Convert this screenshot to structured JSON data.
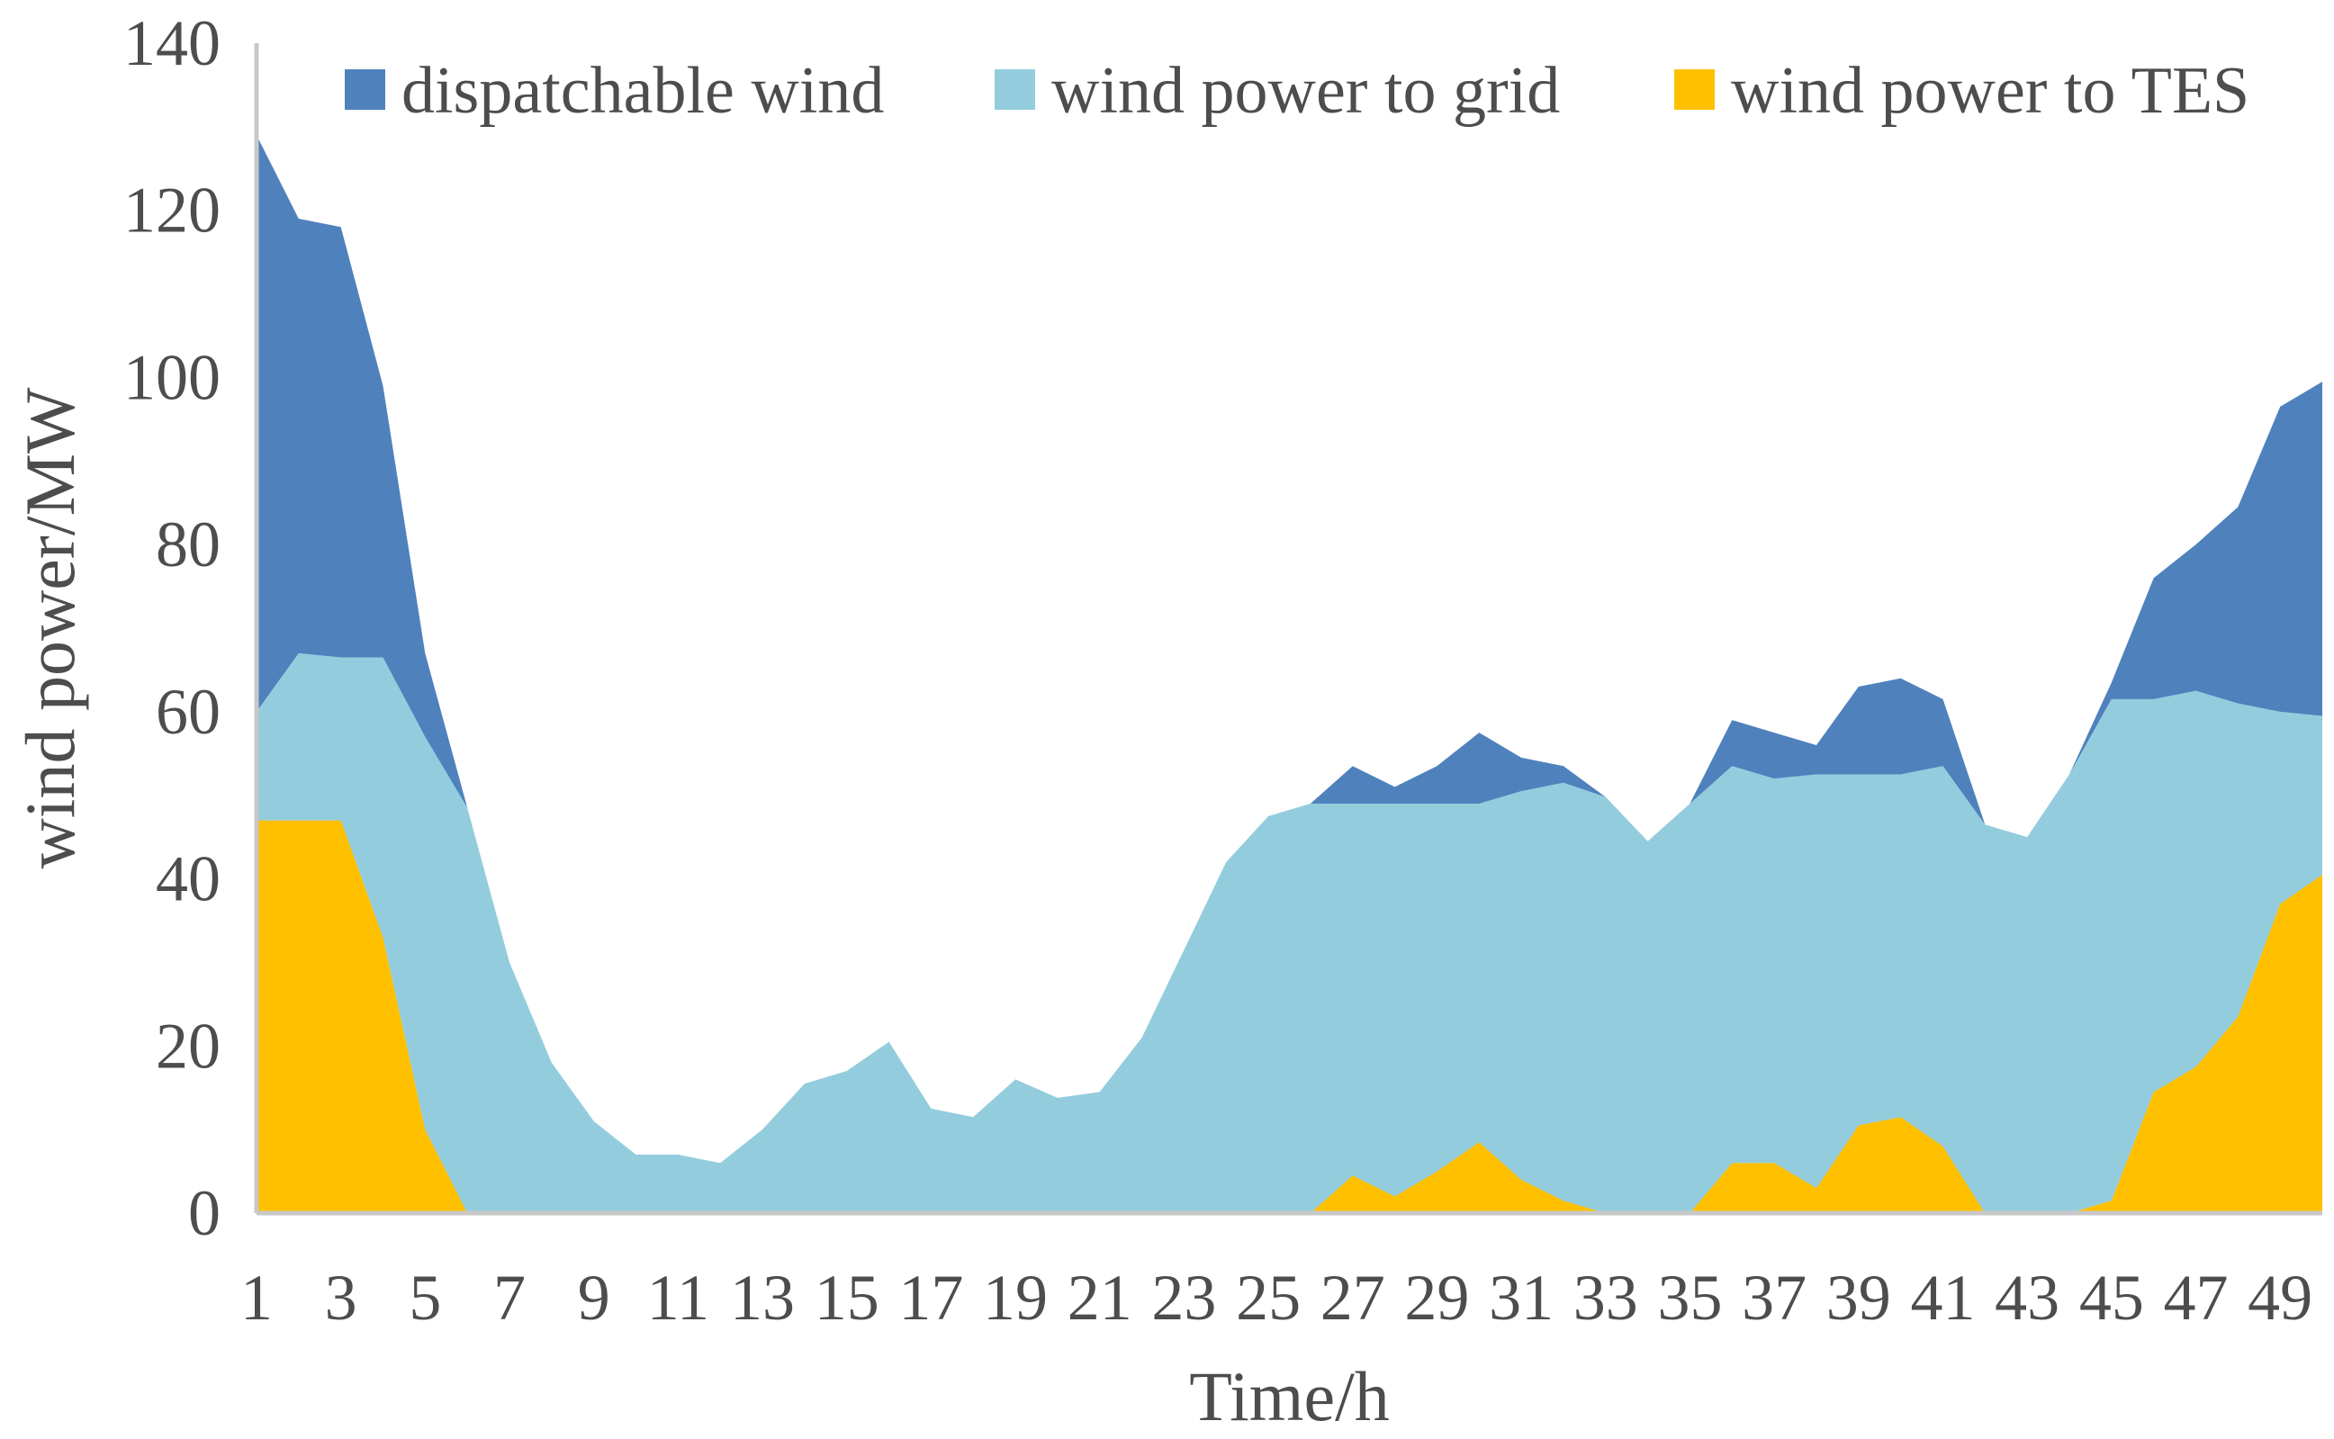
{
  "chart_data": {
    "type": "area",
    "stacked": true,
    "xlabel": "Time/h",
    "ylabel": "wind power/MW",
    "ylim": [
      0,
      140
    ],
    "yticks": [
      0,
      20,
      40,
      60,
      80,
      100,
      120,
      140
    ],
    "xlim": [
      1,
      50
    ],
    "xticks": [
      1,
      3,
      5,
      7,
      9,
      11,
      13,
      15,
      17,
      19,
      21,
      23,
      25,
      27,
      29,
      31,
      33,
      35,
      37,
      39,
      41,
      43,
      45,
      47,
      49
    ],
    "grid": false,
    "legend_position": "top",
    "x": [
      1,
      2,
      3,
      4,
      5,
      6,
      7,
      8,
      9,
      10,
      11,
      12,
      13,
      14,
      15,
      16,
      17,
      18,
      19,
      20,
      21,
      22,
      23,
      24,
      25,
      26,
      27,
      28,
      29,
      30,
      31,
      32,
      33,
      34,
      35,
      36,
      37,
      38,
      39,
      40,
      41,
      42,
      43,
      44,
      45,
      46,
      47,
      48,
      49,
      50
    ],
    "series": [
      {
        "name": "wind power to TES",
        "color": "#ffc000",
        "values": [
          47,
          47,
          47,
          33,
          10,
          0,
          0,
          0,
          0,
          0,
          0,
          0,
          0,
          0,
          0,
          0,
          0,
          0,
          0,
          0,
          0,
          0,
          0,
          0,
          0,
          0,
          4.5,
          2,
          5,
          8.5,
          4,
          1.5,
          0,
          0,
          0,
          6,
          6,
          3,
          10.5,
          11.5,
          8,
          0,
          0,
          0,
          1.5,
          14.5,
          17.5,
          23.5,
          37,
          40.5
        ]
      },
      {
        "name": "wind power to grid",
        "color": "#93cddd",
        "values": [
          13,
          20,
          19.5,
          33.5,
          47,
          48.5,
          30,
          18,
          11,
          7,
          7,
          6,
          10,
          15.5,
          17,
          20.5,
          12.5,
          11.5,
          16,
          13.8,
          14.5,
          21,
          31.5,
          42,
          47.5,
          49,
          44.5,
          47,
          44,
          40.5,
          46.5,
          50,
          49.8,
          44.5,
          49,
          47.5,
          46,
          49.5,
          42,
          41,
          45.5,
          46.5,
          45,
          52.5,
          60,
          47,
          45,
          37.5,
          23,
          19
        ]
      },
      {
        "name": "dispatchable wind",
        "color": "#4f81bd",
        "values": [
          69,
          52,
          51.5,
          32.5,
          10,
          0,
          0,
          0,
          0,
          0,
          0,
          0,
          0,
          0,
          0,
          0,
          0,
          0,
          0,
          0,
          0,
          0,
          0,
          0,
          0,
          0,
          4.5,
          2,
          4.5,
          8.5,
          4,
          2,
          0,
          0,
          0,
          5.5,
          5.5,
          3.5,
          10.5,
          11.5,
          8,
          0,
          0,
          0,
          2,
          14.5,
          17.5,
          23.5,
          36.5,
          40
        ]
      }
    ]
  }
}
